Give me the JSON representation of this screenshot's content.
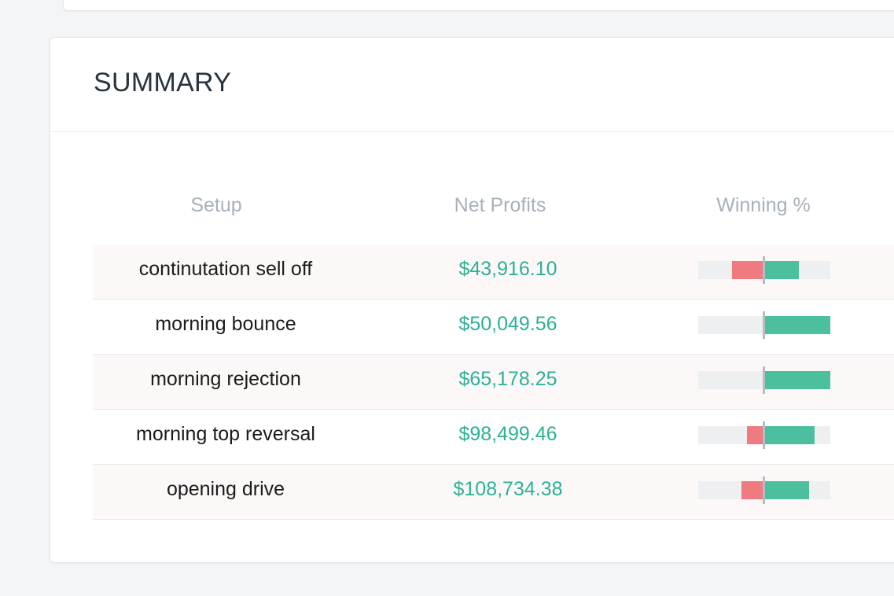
{
  "summary": {
    "title": "SUMMARY",
    "columns": {
      "setup": "Setup",
      "net_profits": "Net Profits",
      "winning_pct": "Winning %"
    },
    "rows": [
      {
        "setup": "continutation sell off",
        "net_profit": "$43,916.10",
        "loss_share": 0.49,
        "win_share": 0.52
      },
      {
        "setup": "morning bounce",
        "net_profit": "$50,049.56",
        "loss_share": 0.0,
        "win_share": 1.0
      },
      {
        "setup": "morning rejection",
        "net_profit": "$65,178.25",
        "loss_share": 0.0,
        "win_share": 1.0
      },
      {
        "setup": "morning top reversal",
        "net_profit": "$98,499.46",
        "loss_share": 0.26,
        "win_share": 0.76
      },
      {
        "setup": "opening drive",
        "net_profit": "$108,734.38",
        "loss_share": 0.34,
        "win_share": 0.68
      }
    ],
    "colors": {
      "profit_text": "#2bb196",
      "win_bar": "#4cbf9e",
      "loss_bar": "#ef7b80",
      "bar_track": "#eeeff1"
    }
  }
}
